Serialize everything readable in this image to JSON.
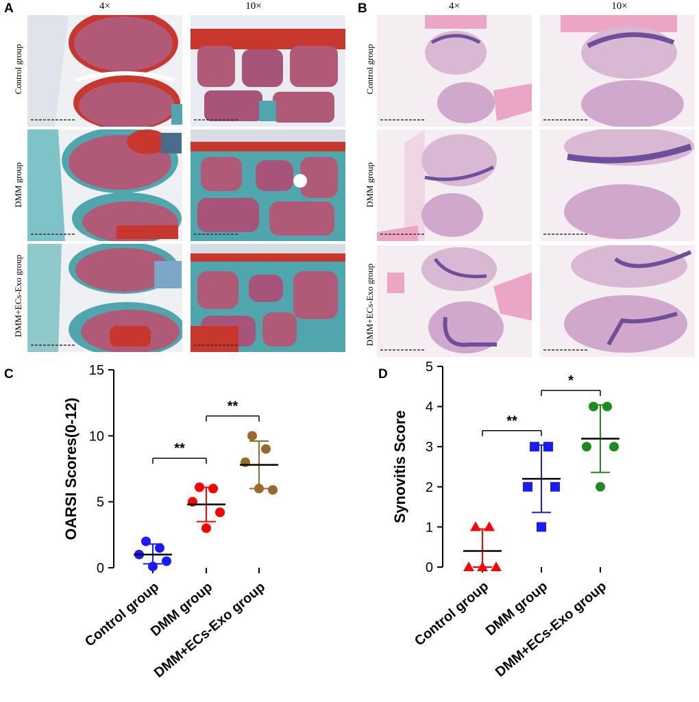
{
  "panel_labels": {
    "a": "A",
    "b": "B",
    "c": "C",
    "d": "D"
  },
  "magnifications": {
    "low": "4×",
    "high": "10×"
  },
  "groups": [
    "Control group",
    "DMM group",
    "DMM+ECs-Exo group"
  ],
  "colors": {
    "control": "#1a1aff",
    "dmm": "#ff0000",
    "dmm_exo_c": "#9b6a2a",
    "dmm_exo_d": "#1f8a1f",
    "saf_red": "#c8372d",
    "fast_green": "#4fa6ad",
    "bone_pink": "#b05a78",
    "he_pink": "#eba6c6",
    "he_purple": "#6f4f9a"
  },
  "chart_data": [
    {
      "type": "scatter",
      "panel": "C",
      "ylabel": "OARSI Scores(0-12)",
      "xlabel": "",
      "categories": [
        "Control group",
        "DMM group",
        "DMM+ECs-Exo group"
      ],
      "ylim": [
        0,
        15
      ],
      "yticks": [
        0,
        5,
        10,
        15
      ],
      "series": [
        {
          "category": "Control group",
          "marker": "circle",
          "color": "#1a1aff",
          "points": [
            2.0,
            1.5,
            1.0,
            0.5,
            0.1
          ],
          "mean": 1.0,
          "sd_low": 0.3,
          "sd_high": 1.8
        },
        {
          "category": "DMM group",
          "marker": "circle",
          "color": "#ff0000",
          "points": [
            6.1,
            6.0,
            5.0,
            4.2,
            3.0
          ],
          "mean": 4.8,
          "sd_low": 3.5,
          "sd_high": 6.1
        },
        {
          "category": "DMM+ECs-Exo group",
          "marker": "circle",
          "color": "#9b6a2a",
          "points": [
            10.0,
            9.0,
            8.0,
            5.9,
            6.0
          ],
          "mean": 7.8,
          "sd_low": 6.0,
          "sd_high": 9.6
        }
      ],
      "significance": [
        {
          "from": "Control group",
          "to": "DMM group",
          "label": "**",
          "y": 8.3
        },
        {
          "from": "DMM group",
          "to": "DMM+ECs-Exo group",
          "label": "**",
          "y": 11.5
        }
      ]
    },
    {
      "type": "scatter",
      "panel": "D",
      "ylabel": "Synovitis Score",
      "xlabel": "",
      "categories": [
        "Control group",
        "DMM group",
        "DMM+ECs-Exo group"
      ],
      "ylim": [
        0,
        5
      ],
      "yticks": [
        0,
        1,
        2,
        3,
        4,
        5
      ],
      "series": [
        {
          "category": "Control group",
          "marker": "triangle",
          "color": "#ff0000",
          "points": [
            1,
            1,
            0,
            0,
            0
          ],
          "mean": 0.4,
          "sd_low": 0.0,
          "sd_high": 0.95
        },
        {
          "category": "DMM group",
          "marker": "square",
          "color": "#1a1aff",
          "points": [
            3,
            3,
            2,
            2,
            1
          ],
          "mean": 2.2,
          "sd_low": 1.36,
          "sd_high": 3.04
        },
        {
          "category": "DMM+ECs-Exo group",
          "marker": "circle",
          "color": "#1f8a1f",
          "points": [
            4,
            4,
            3,
            3,
            2
          ],
          "mean": 3.2,
          "sd_low": 2.36,
          "sd_high": 4.04
        }
      ],
      "significance": [
        {
          "from": "Control group",
          "to": "DMM group",
          "label": "**",
          "y": 3.4
        },
        {
          "from": "DMM group",
          "to": "DMM+ECs-Exo group",
          "label": "*",
          "y": 4.4
        }
      ]
    }
  ]
}
